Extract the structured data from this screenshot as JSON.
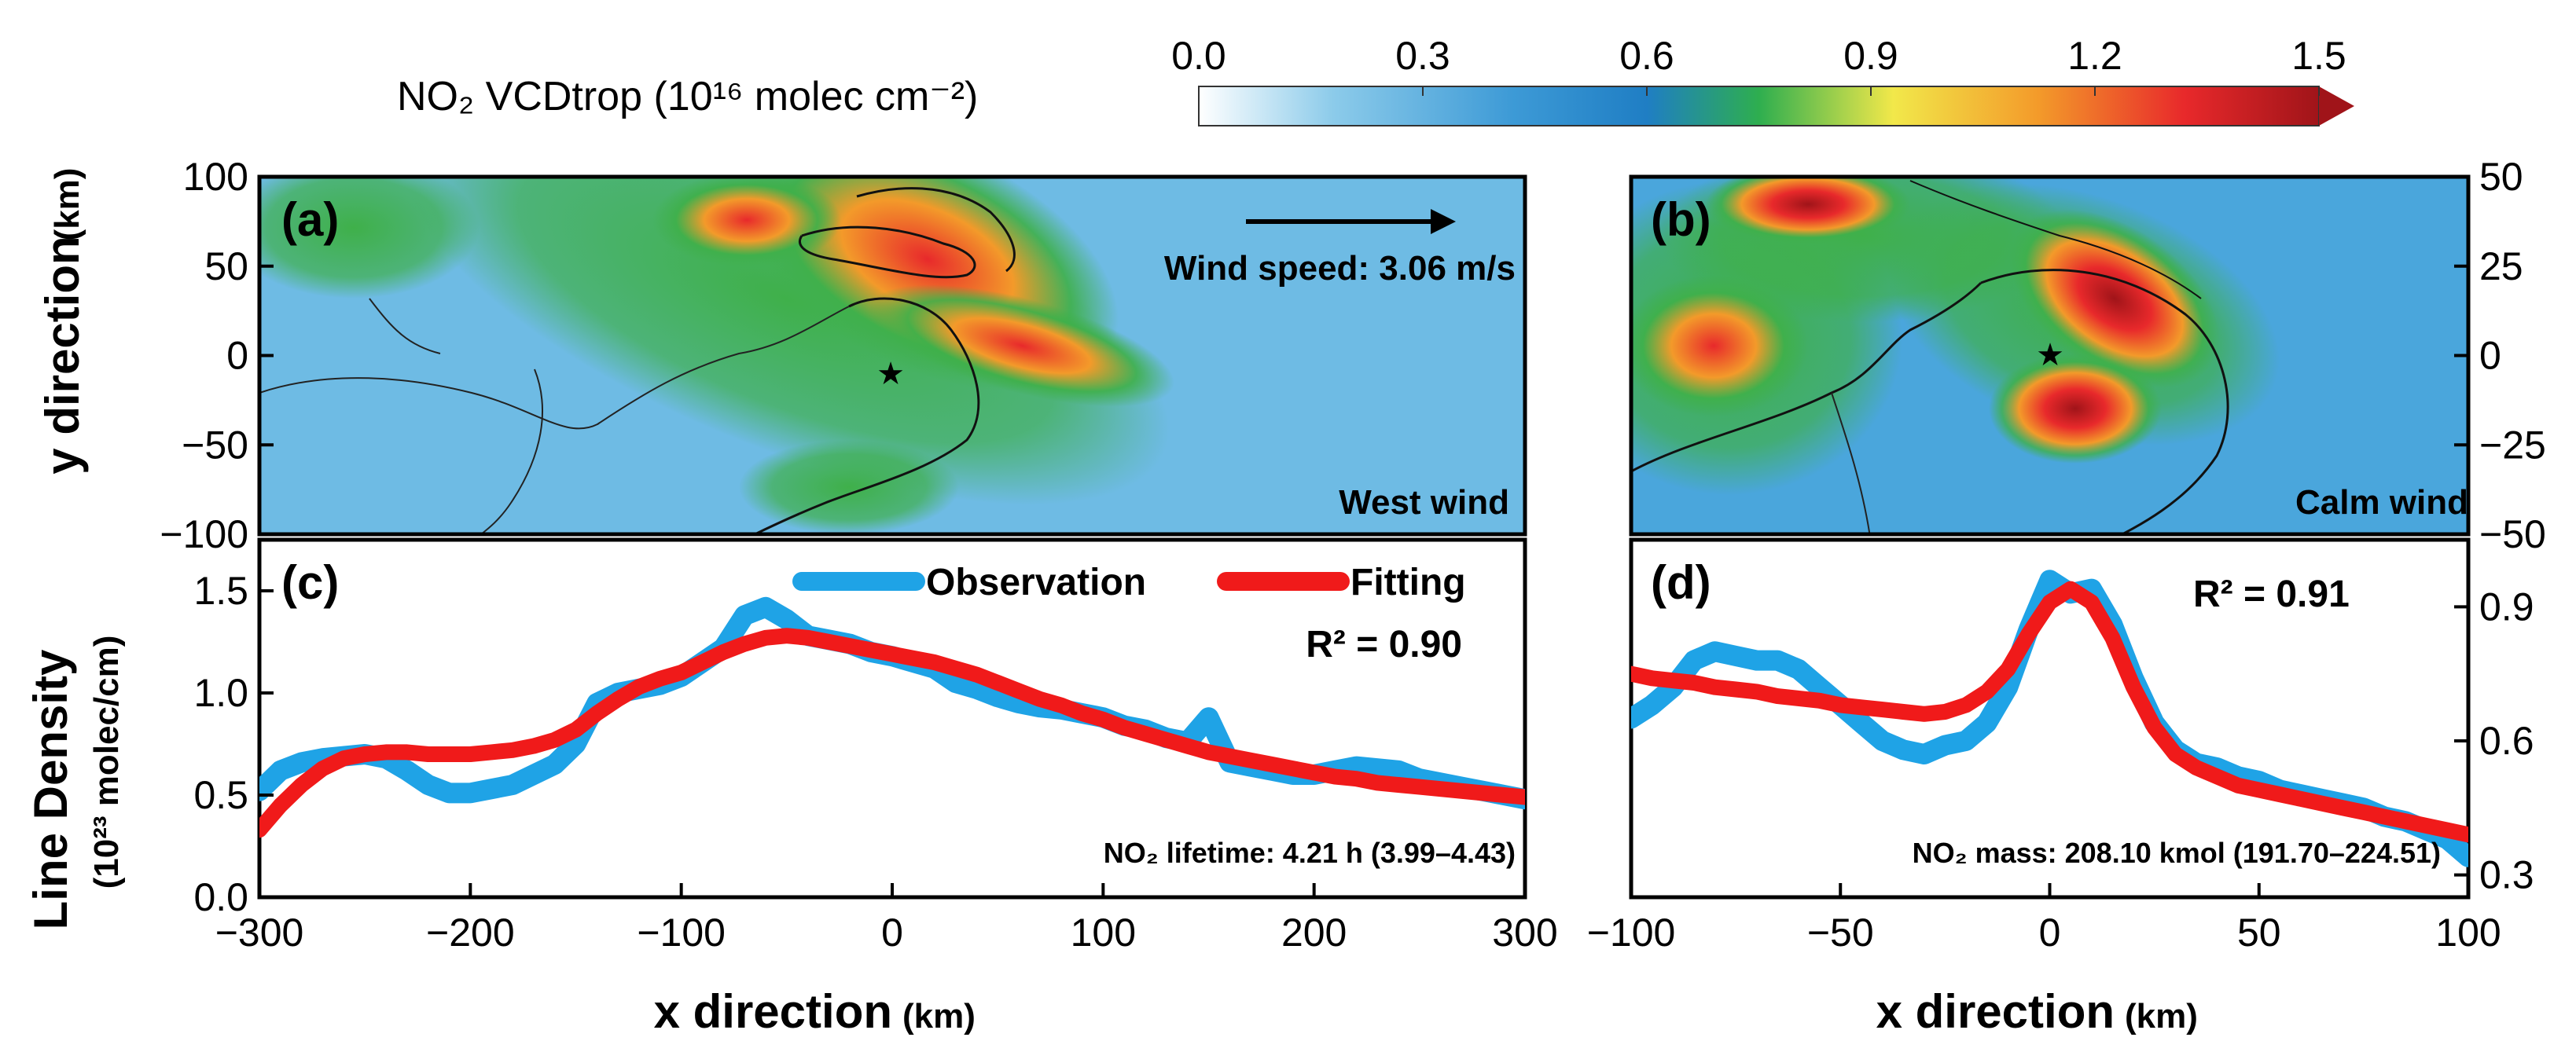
{
  "colorbar": {
    "title": "NO₂ VCDtrop (10¹⁶ molec cm⁻²)",
    "ticks": [
      "0.0",
      "0.3",
      "0.6",
      "0.9",
      "1.2",
      "1.5"
    ],
    "range": [
      0.0,
      1.5
    ],
    "colors": [
      "#ffffff",
      "#4aa8d8",
      "#1f7ec4",
      "#3fb04a",
      "#f3e84a",
      "#f39a2a",
      "#e8292b",
      "#a01419"
    ]
  },
  "map_a": {
    "letter": "(a)",
    "wind_text": "Wind speed: 3.06 m/s",
    "wind_label": "West wind",
    "y_ticks": [
      "100",
      "50",
      "0",
      "−50",
      "−100"
    ]
  },
  "map_b": {
    "letter": "(b)",
    "wind_label": "Calm wind",
    "y_ticks": [
      "50",
      "25",
      "0",
      "−25",
      "−50"
    ]
  },
  "labels": {
    "y_map_title": "y direction",
    "y_map_unit": "(km)",
    "y_line_title": "Line Density",
    "y_line_unit": "(10²³ molec/cm)",
    "x_title": "x direction",
    "x_unit": "(km)"
  },
  "legend": {
    "observation": "Observation",
    "fitting": "Fitting"
  },
  "chart_data": [
    {
      "type": "line",
      "id": "c",
      "letter": "(c)",
      "r2": "R² = 0.90",
      "note": "NO₂ lifetime: 4.21 h  (3.99–4.43)",
      "xlim": [
        -300,
        300
      ],
      "ylim": [
        0.0,
        1.75
      ],
      "xticks": [
        "−300",
        "−200",
        "−100",
        "0",
        "100",
        "200",
        "300"
      ],
      "yticks": [
        "0.0",
        "0.5",
        "1.0",
        "1.5"
      ],
      "series": [
        {
          "name": "Observation",
          "color": "#1fa3e6",
          "x": [
            -300,
            -290,
            -280,
            -270,
            -260,
            -250,
            -240,
            -230,
            -220,
            -210,
            -200,
            -190,
            -180,
            -170,
            -160,
            -150,
            -140,
            -130,
            -120,
            -110,
            -100,
            -90,
            -80,
            -70,
            -60,
            -50,
            -40,
            -30,
            -20,
            -10,
            0,
            10,
            20,
            30,
            40,
            50,
            60,
            70,
            80,
            90,
            100,
            110,
            120,
            130,
            140,
            150,
            160,
            170,
            180,
            190,
            200,
            210,
            220,
            230,
            240,
            250,
            260,
            270,
            280,
            290,
            300
          ],
          "y": [
            0.52,
            0.62,
            0.66,
            0.68,
            0.69,
            0.7,
            0.68,
            0.62,
            0.55,
            0.51,
            0.51,
            0.53,
            0.55,
            0.6,
            0.65,
            0.75,
            0.95,
            1.0,
            1.02,
            1.04,
            1.08,
            1.15,
            1.22,
            1.38,
            1.42,
            1.36,
            1.28,
            1.26,
            1.24,
            1.2,
            1.18,
            1.15,
            1.12,
            1.05,
            1.02,
            0.98,
            0.95,
            0.93,
            0.92,
            0.9,
            0.88,
            0.84,
            0.82,
            0.78,
            0.76,
            0.88,
            0.66,
            0.64,
            0.62,
            0.6,
            0.6,
            0.62,
            0.64,
            0.63,
            0.62,
            0.58,
            0.56,
            0.54,
            0.52,
            0.5,
            0.48
          ]
        },
        {
          "name": "Fitting",
          "color": "#f01a1a",
          "x": [
            -300,
            -290,
            -280,
            -270,
            -260,
            -250,
            -240,
            -230,
            -220,
            -210,
            -200,
            -190,
            -180,
            -170,
            -160,
            -150,
            -140,
            -130,
            -120,
            -110,
            -100,
            -90,
            -80,
            -70,
            -60,
            -50,
            -40,
            -30,
            -20,
            -10,
            0,
            10,
            20,
            30,
            40,
            50,
            60,
            70,
            80,
            90,
            100,
            110,
            120,
            130,
            140,
            150,
            160,
            170,
            180,
            190,
            200,
            210,
            220,
            230,
            240,
            250,
            260,
            270,
            280,
            290,
            300
          ],
          "y": [
            0.33,
            0.45,
            0.55,
            0.63,
            0.68,
            0.7,
            0.71,
            0.71,
            0.7,
            0.7,
            0.7,
            0.71,
            0.72,
            0.74,
            0.77,
            0.82,
            0.9,
            0.97,
            1.03,
            1.07,
            1.1,
            1.15,
            1.2,
            1.24,
            1.27,
            1.28,
            1.27,
            1.25,
            1.23,
            1.21,
            1.19,
            1.17,
            1.15,
            1.12,
            1.09,
            1.05,
            1.01,
            0.97,
            0.94,
            0.9,
            0.87,
            0.83,
            0.8,
            0.77,
            0.74,
            0.71,
            0.69,
            0.67,
            0.65,
            0.63,
            0.61,
            0.59,
            0.58,
            0.56,
            0.55,
            0.54,
            0.53,
            0.52,
            0.51,
            0.5,
            0.49
          ]
        }
      ]
    },
    {
      "type": "line",
      "id": "d",
      "letter": "(d)",
      "r2": "R² = 0.91",
      "note": "NO₂ mass: 208.10 kmol  (191.70–224.51)",
      "xlim": [
        -100,
        100
      ],
      "ylim": [
        0.25,
        1.05
      ],
      "xticks": [
        "−100",
        "−50",
        "0",
        "50",
        "100"
      ],
      "yticks": [
        "0.3",
        "0.6",
        "0.9"
      ],
      "series": [
        {
          "name": "Observation",
          "color": "#1fa3e6",
          "x": [
            -100,
            -95,
            -90,
            -85,
            -80,
            -75,
            -70,
            -65,
            -60,
            -55,
            -50,
            -45,
            -40,
            -35,
            -30,
            -25,
            -20,
            -15,
            -10,
            -5,
            0,
            5,
            10,
            15,
            20,
            25,
            30,
            35,
            40,
            45,
            50,
            55,
            60,
            65,
            70,
            75,
            80,
            85,
            90,
            95,
            100
          ],
          "y": [
            0.65,
            0.68,
            0.72,
            0.78,
            0.8,
            0.79,
            0.78,
            0.78,
            0.76,
            0.72,
            0.68,
            0.64,
            0.6,
            0.58,
            0.57,
            0.59,
            0.6,
            0.64,
            0.72,
            0.85,
            0.96,
            0.93,
            0.94,
            0.86,
            0.74,
            0.64,
            0.58,
            0.55,
            0.54,
            0.52,
            0.51,
            0.49,
            0.48,
            0.47,
            0.46,
            0.45,
            0.43,
            0.42,
            0.4,
            0.38,
            0.34
          ]
        },
        {
          "name": "Fitting",
          "color": "#f01a1a",
          "x": [
            -100,
            -95,
            -90,
            -85,
            -80,
            -75,
            -70,
            -65,
            -60,
            -55,
            -50,
            -45,
            -40,
            -35,
            -30,
            -25,
            -20,
            -15,
            -10,
            -5,
            0,
            5,
            10,
            15,
            20,
            25,
            30,
            35,
            40,
            45,
            50,
            55,
            60,
            65,
            70,
            75,
            80,
            85,
            90,
            95,
            100
          ],
          "y": [
            0.75,
            0.74,
            0.735,
            0.73,
            0.72,
            0.715,
            0.71,
            0.7,
            0.695,
            0.69,
            0.68,
            0.675,
            0.67,
            0.665,
            0.66,
            0.665,
            0.68,
            0.71,
            0.76,
            0.84,
            0.91,
            0.94,
            0.91,
            0.83,
            0.72,
            0.63,
            0.57,
            0.54,
            0.52,
            0.5,
            0.49,
            0.48,
            0.47,
            0.46,
            0.45,
            0.44,
            0.43,
            0.42,
            0.41,
            0.4,
            0.39
          ]
        }
      ]
    }
  ]
}
